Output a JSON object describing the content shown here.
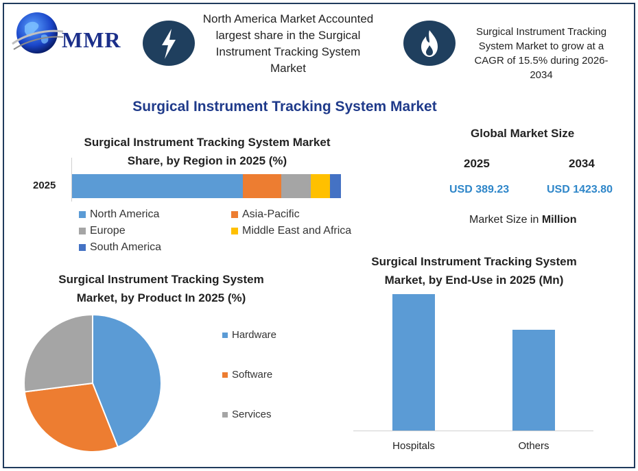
{
  "brand": {
    "logo_text": "MMR"
  },
  "header": {
    "box1_text": "North America Market Accounted largest share in the Surgical Instrument Tracking System Market",
    "box2_text": "Surgical Instrument Tracking System Market to grow at a CAGR of 15.5% during 2026-2034",
    "icon1": "lightning-icon",
    "icon2": "flame-icon"
  },
  "main_title": "Surgical Instrument Tracking System Market",
  "colors": {
    "north_america": "#5b9bd5",
    "asia_pacific": "#ed7d31",
    "europe": "#a5a5a5",
    "mea": "#ffc000",
    "south_america": "#4472c4",
    "icon_bg": "#1f3f5e",
    "title_blue": "#1f3a8a",
    "value_blue": "#2e86c9"
  },
  "global_market": {
    "title": "Global Market Size",
    "year1": "2025",
    "year2": "2034",
    "value1": "USD 389.23",
    "value2": "USD 1423.80",
    "note_prefix": "Market Size in ",
    "note_bold": "Million"
  },
  "chart_data": [
    {
      "type": "bar",
      "orientation": "horizontal-stacked",
      "title": "Surgical Instrument Tracking System Market Share, by Region in 2025 (%)",
      "categories": [
        "2025"
      ],
      "series": [
        {
          "name": "North America",
          "values": [
            63
          ]
        },
        {
          "name": "Asia-Pacific",
          "values": [
            14
          ]
        },
        {
          "name": "Europe",
          "values": [
            11
          ]
        },
        {
          "name": "Middle East and Africa",
          "values": [
            7
          ]
        },
        {
          "name": "South America",
          "values": [
            4
          ]
        }
      ],
      "legend_position": "bottom"
    },
    {
      "type": "pie",
      "title": "Surgical Instrument Tracking System Market, by Product In 2025 (%)",
      "labels": [
        "Hardware",
        "Software",
        "Services"
      ],
      "values": [
        44,
        29,
        27
      ],
      "colors": [
        "#5b9bd5",
        "#ed7d31",
        "#a5a5a5"
      ],
      "legend_position": "right"
    },
    {
      "type": "bar",
      "title": "Surgical Instrument Tracking System Market, by End-Use in 2025 (Mn)",
      "categories": [
        "Hospitals",
        "Others"
      ],
      "values": [
        230,
        170
      ],
      "ylim": [
        0,
        240
      ],
      "color": "#5b9bd5",
      "grid": false
    }
  ]
}
